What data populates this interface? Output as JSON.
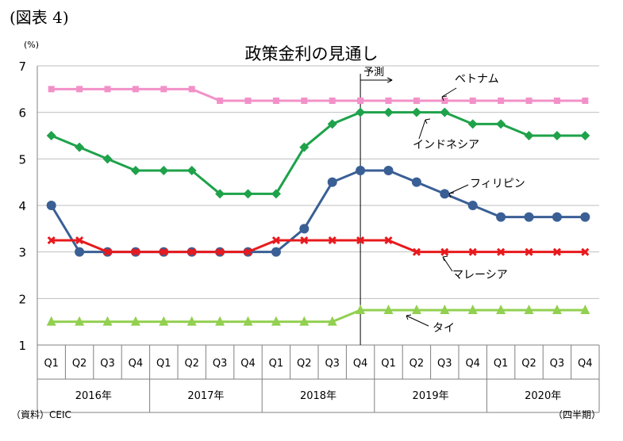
{
  "figure_label": "(図表 4)",
  "unit_label": "(%)",
  "source": "（資料）CEIC",
  "period_note": "（四半期）",
  "chart_data": {
    "type": "line",
    "title": "政策金利の見通し",
    "categories": [
      "Q1",
      "Q2",
      "Q3",
      "Q4",
      "Q1",
      "Q2",
      "Q3",
      "Q4",
      "Q1",
      "Q2",
      "Q3",
      "Q4",
      "Q1",
      "Q2",
      "Q3",
      "Q4",
      "Q1",
      "Q2",
      "Q3",
      "Q4"
    ],
    "year_groups": [
      "2016年",
      "2017年",
      "2018年",
      "2019年",
      "2020年"
    ],
    "ylim": [
      1,
      7
    ],
    "yticks": [
      "1",
      "2",
      "3",
      "4",
      "5",
      "6",
      "7"
    ],
    "grid": true,
    "forecast_label": "予測",
    "forecast_start_index": 11,
    "series": [
      {
        "name": "ベトナム",
        "color": "#f291c8",
        "marker": "square",
        "values": [
          6.5,
          6.5,
          6.5,
          6.5,
          6.5,
          6.5,
          6.25,
          6.25,
          6.25,
          6.25,
          6.25,
          6.25,
          6.25,
          6.25,
          6.25,
          6.25,
          6.25,
          6.25,
          6.25,
          6.25
        ]
      },
      {
        "name": "インドネシア",
        "color": "#1ea24a",
        "marker": "diamond",
        "values": [
          5.5,
          5.25,
          5.0,
          4.75,
          4.75,
          4.75,
          4.25,
          4.25,
          4.25,
          5.25,
          5.75,
          6.0,
          6.0,
          6.0,
          6.0,
          5.75,
          5.75,
          5.5,
          5.5,
          5.5
        ]
      },
      {
        "name": "フィリピン",
        "color": "#3a5f95",
        "marker": "circle",
        "values": [
          4.0,
          3.0,
          3.0,
          3.0,
          3.0,
          3.0,
          3.0,
          3.0,
          3.0,
          3.5,
          4.5,
          4.75,
          4.75,
          4.5,
          4.25,
          4.0,
          3.75,
          3.75,
          3.75,
          3.75
        ]
      },
      {
        "name": "マレーシア",
        "color": "#e8191d",
        "marker": "x",
        "values": [
          3.25,
          3.25,
          3.0,
          3.0,
          3.0,
          3.0,
          3.0,
          3.0,
          3.25,
          3.25,
          3.25,
          3.25,
          3.25,
          3.0,
          3.0,
          3.0,
          3.0,
          3.0,
          3.0,
          3.0
        ]
      },
      {
        "name": "タイ",
        "color": "#92d050",
        "marker": "triangle",
        "values": [
          1.5,
          1.5,
          1.5,
          1.5,
          1.5,
          1.5,
          1.5,
          1.5,
          1.5,
          1.5,
          1.5,
          1.75,
          1.75,
          1.75,
          1.75,
          1.75,
          1.75,
          1.75,
          1.75,
          1.75
        ]
      }
    ]
  }
}
